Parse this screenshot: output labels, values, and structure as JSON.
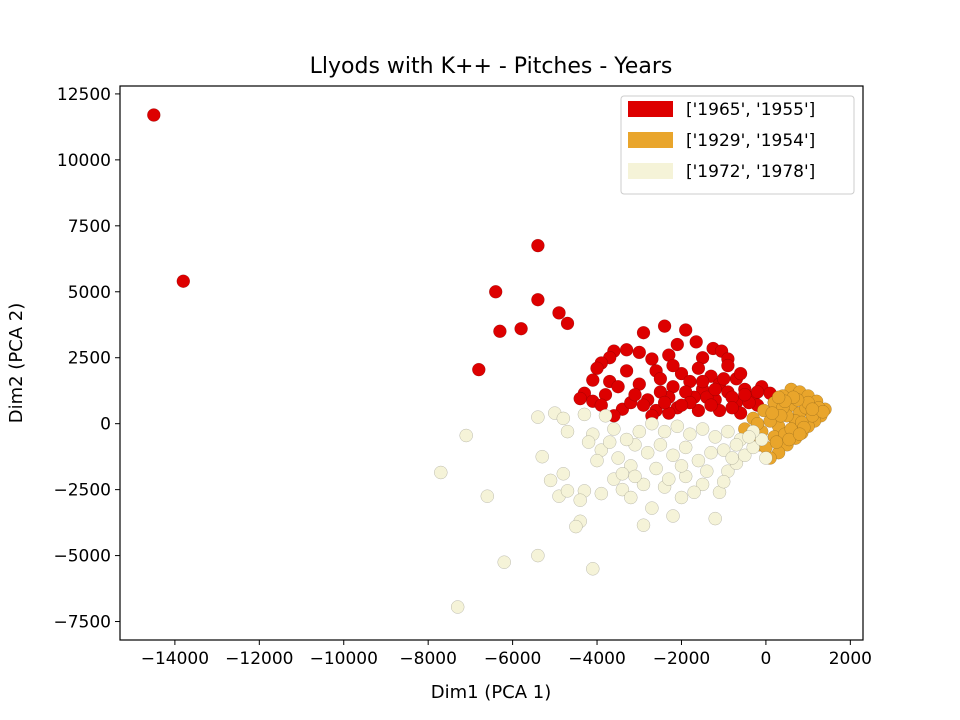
{
  "chart_data": {
    "type": "scatter",
    "title": "Llyods with K++ - Pitches - Years",
    "xlabel": "Dim1 (PCA 1)",
    "ylabel": "Dim2 (PCA 2)",
    "xlim": [
      -15300,
      2300
    ],
    "ylim": [
      -8200,
      12800
    ],
    "xticks": [
      -14000,
      -12000,
      -10000,
      -8000,
      -6000,
      -4000,
      -2000,
      0,
      2000
    ],
    "yticks": [
      -7500,
      -5000,
      -2500,
      0,
      2500,
      5000,
      7500,
      10000,
      12500
    ],
    "xtick_labels": [
      "−14000",
      "−12000",
      "−10000",
      "−8000",
      "−6000",
      "−4000",
      "−2000",
      "0",
      "2000"
    ],
    "ytick_labels": [
      "−7500",
      "−5000",
      "−2500",
      "0",
      "2500",
      "5000",
      "7500",
      "10000",
      "12500"
    ],
    "grid": false,
    "legend_position": "top-right",
    "series": [
      {
        "name": "['1965', '1955']",
        "color": "#dd0000",
        "points": [
          [
            -14500,
            11700
          ],
          [
            -13800,
            5400
          ],
          [
            -5400,
            6750
          ],
          [
            -6400,
            5000
          ],
          [
            -5400,
            4700
          ],
          [
            -4900,
            4200
          ],
          [
            -4700,
            3800
          ],
          [
            -5800,
            3600
          ],
          [
            -6300,
            3500
          ],
          [
            -6800,
            2050
          ],
          [
            -2400,
            3700
          ],
          [
            -1900,
            3550
          ],
          [
            -2900,
            3450
          ],
          [
            -1650,
            3100
          ],
          [
            -2100,
            3000
          ],
          [
            -1250,
            2850
          ],
          [
            -1050,
            2750
          ],
          [
            -3600,
            2750
          ],
          [
            -3300,
            2800
          ],
          [
            -3000,
            2700
          ],
          [
            -3700,
            2500
          ],
          [
            -3900,
            2300
          ],
          [
            -4000,
            2100
          ],
          [
            -2700,
            2450
          ],
          [
            -2300,
            2600
          ],
          [
            -1500,
            2500
          ],
          [
            -900,
            2450
          ],
          [
            -3300,
            2000
          ],
          [
            -4100,
            1650
          ],
          [
            -3700,
            1600
          ],
          [
            -3500,
            1400
          ],
          [
            -4300,
            1150
          ],
          [
            -4100,
            850
          ],
          [
            -3800,
            1100
          ],
          [
            -3900,
            700
          ],
          [
            -3400,
            550
          ],
          [
            -3600,
            300
          ],
          [
            -4400,
            950
          ],
          [
            -3000,
            1500
          ],
          [
            -2600,
            2000
          ],
          [
            -2500,
            1700
          ],
          [
            -2200,
            1400
          ],
          [
            -2000,
            1900
          ],
          [
            -1800,
            1600
          ],
          [
            -1500,
            1300
          ],
          [
            -1300,
            1800
          ],
          [
            -1100,
            1500
          ],
          [
            -900,
            1200
          ],
          [
            -700,
            1700
          ],
          [
            -500,
            1300
          ],
          [
            -300,
            1000
          ],
          [
            -100,
            1400
          ],
          [
            100,
            1150
          ],
          [
            300,
            950
          ],
          [
            -200,
            700
          ],
          [
            -700,
            800
          ],
          [
            -1200,
            900
          ],
          [
            -1700,
            1000
          ],
          [
            -2300,
            1000
          ],
          [
            -2800,
            900
          ],
          [
            -2600,
            500
          ],
          [
            -2100,
            600
          ],
          [
            -1600,
            500
          ],
          [
            -1100,
            500
          ],
          [
            -600,
            400
          ],
          [
            -2900,
            700
          ],
          [
            -3200,
            800
          ],
          [
            -1900,
            1200
          ],
          [
            -1400,
            1000
          ],
          [
            -800,
            1000
          ],
          [
            -400,
            800
          ],
          [
            -200,
            1200
          ],
          [
            -1000,
            1700
          ],
          [
            -1600,
            2100
          ],
          [
            -2200,
            2200
          ],
          [
            -900,
            2200
          ],
          [
            -600,
            1900
          ],
          [
            -2500,
            1200
          ],
          [
            -3100,
            1100
          ],
          [
            -2700,
            300
          ],
          [
            -2300,
            400
          ],
          [
            -1800,
            800
          ],
          [
            -1300,
            700
          ],
          [
            -800,
            600
          ],
          [
            -500,
            1100
          ],
          [
            200,
            800
          ],
          [
            -1500,
            1600
          ],
          [
            -2000,
            700
          ],
          [
            -2400,
            800
          ],
          [
            -1200,
            1300
          ]
        ]
      },
      {
        "name": "['1929', '1954']",
        "color": "#e9a52b",
        "points": [
          [
            600,
            1300
          ],
          [
            800,
            1200
          ],
          [
            1000,
            1050
          ],
          [
            1200,
            850
          ],
          [
            1400,
            550
          ],
          [
            1300,
            300
          ],
          [
            1150,
            100
          ],
          [
            1000,
            -100
          ],
          [
            850,
            -350
          ],
          [
            700,
            -550
          ],
          [
            500,
            -800
          ],
          [
            300,
            -1100
          ],
          [
            100,
            -1300
          ],
          [
            -150,
            -800
          ],
          [
            -300,
            -400
          ],
          [
            -500,
            -200
          ],
          [
            -300,
            200
          ],
          [
            -50,
            500
          ],
          [
            200,
            800
          ],
          [
            400,
            1050
          ],
          [
            600,
            700
          ],
          [
            800,
            400
          ],
          [
            950,
            600
          ],
          [
            1100,
            300
          ],
          [
            700,
            100
          ],
          [
            500,
            300
          ],
          [
            300,
            -100
          ],
          [
            200,
            -500
          ],
          [
            450,
            -400
          ],
          [
            600,
            -200
          ],
          [
            850,
            50
          ],
          [
            1000,
            800
          ],
          [
            1250,
            600
          ],
          [
            750,
            900
          ],
          [
            400,
            600
          ],
          [
            100,
            100
          ],
          [
            -100,
            -300
          ],
          [
            0,
            -900
          ],
          [
            250,
            -700
          ],
          [
            550,
            -600
          ],
          [
            350,
            300
          ],
          [
            900,
            -150
          ],
          [
            1350,
            450
          ],
          [
            650,
            1000
          ],
          [
            150,
            400
          ],
          [
            -200,
            0
          ],
          [
            800,
            -400
          ],
          [
            1100,
            550
          ],
          [
            450,
            850
          ],
          [
            300,
            1000
          ]
        ]
      },
      {
        "name": "['1972', '1978']",
        "color": "#f5f3d8",
        "points": [
          [
            -7300,
            -6950
          ],
          [
            -7700,
            -1850
          ],
          [
            -6600,
            -2750
          ],
          [
            -6200,
            -5250
          ],
          [
            -5400,
            -5000
          ],
          [
            -4100,
            -5500
          ],
          [
            -7100,
            -450
          ],
          [
            -5300,
            -1250
          ],
          [
            -5100,
            -2150
          ],
          [
            -4900,
            -2750
          ],
          [
            -4800,
            -1900
          ],
          [
            -4700,
            -2550
          ],
          [
            -4300,
            -2550
          ],
          [
            -4400,
            -2900
          ],
          [
            -4400,
            -3700
          ],
          [
            -4500,
            -3900
          ],
          [
            -3900,
            -2650
          ],
          [
            -5400,
            250
          ],
          [
            -5000,
            400
          ],
          [
            -4800,
            200
          ],
          [
            -4700,
            -300
          ],
          [
            -4300,
            350
          ],
          [
            -4100,
            -400
          ],
          [
            -3800,
            300
          ],
          [
            -3600,
            -200
          ],
          [
            -3900,
            -1000
          ],
          [
            -3500,
            -1300
          ],
          [
            -3200,
            -1600
          ],
          [
            -3600,
            -2100
          ],
          [
            -3400,
            -2500
          ],
          [
            -3200,
            -2800
          ],
          [
            -2900,
            -3850
          ],
          [
            -2700,
            -3200
          ],
          [
            -2200,
            -3500
          ],
          [
            -2400,
            -2400
          ],
          [
            -1900,
            -2000
          ],
          [
            -1500,
            -2300
          ],
          [
            -1100,
            -2600
          ],
          [
            -1200,
            -3600
          ],
          [
            -900,
            -1800
          ],
          [
            -700,
            -1500
          ],
          [
            -500,
            -1200
          ],
          [
            -300,
            -900
          ],
          [
            -100,
            -600
          ],
          [
            0,
            -1300
          ],
          [
            -3000,
            -300
          ],
          [
            -2700,
            0
          ],
          [
            -2400,
            -300
          ],
          [
            -2100,
            -100
          ],
          [
            -1800,
            -400
          ],
          [
            -1500,
            -200
          ],
          [
            -1200,
            -500
          ],
          [
            -900,
            -300
          ],
          [
            -600,
            -600
          ],
          [
            -300,
            -300
          ],
          [
            -3100,
            -800
          ],
          [
            -2800,
            -1100
          ],
          [
            -2500,
            -800
          ],
          [
            -2200,
            -1200
          ],
          [
            -1900,
            -900
          ],
          [
            -1600,
            -1400
          ],
          [
            -1300,
            -1100
          ],
          [
            -1000,
            -1000
          ],
          [
            -700,
            -800
          ],
          [
            -400,
            -500
          ],
          [
            -3300,
            -600
          ],
          [
            -2600,
            -1700
          ],
          [
            -2000,
            -1600
          ],
          [
            -1400,
            -1800
          ],
          [
            -800,
            -1300
          ],
          [
            -3400,
            -1900
          ],
          [
            -2300,
            -2100
          ],
          [
            -1700,
            -2600
          ],
          [
            -1000,
            -2200
          ],
          [
            -2900,
            -2300
          ],
          [
            -4200,
            -700
          ],
          [
            -4000,
            -1400
          ],
          [
            -3700,
            -700
          ],
          [
            -3100,
            -2000
          ],
          [
            -2000,
            -2800
          ]
        ]
      }
    ]
  }
}
